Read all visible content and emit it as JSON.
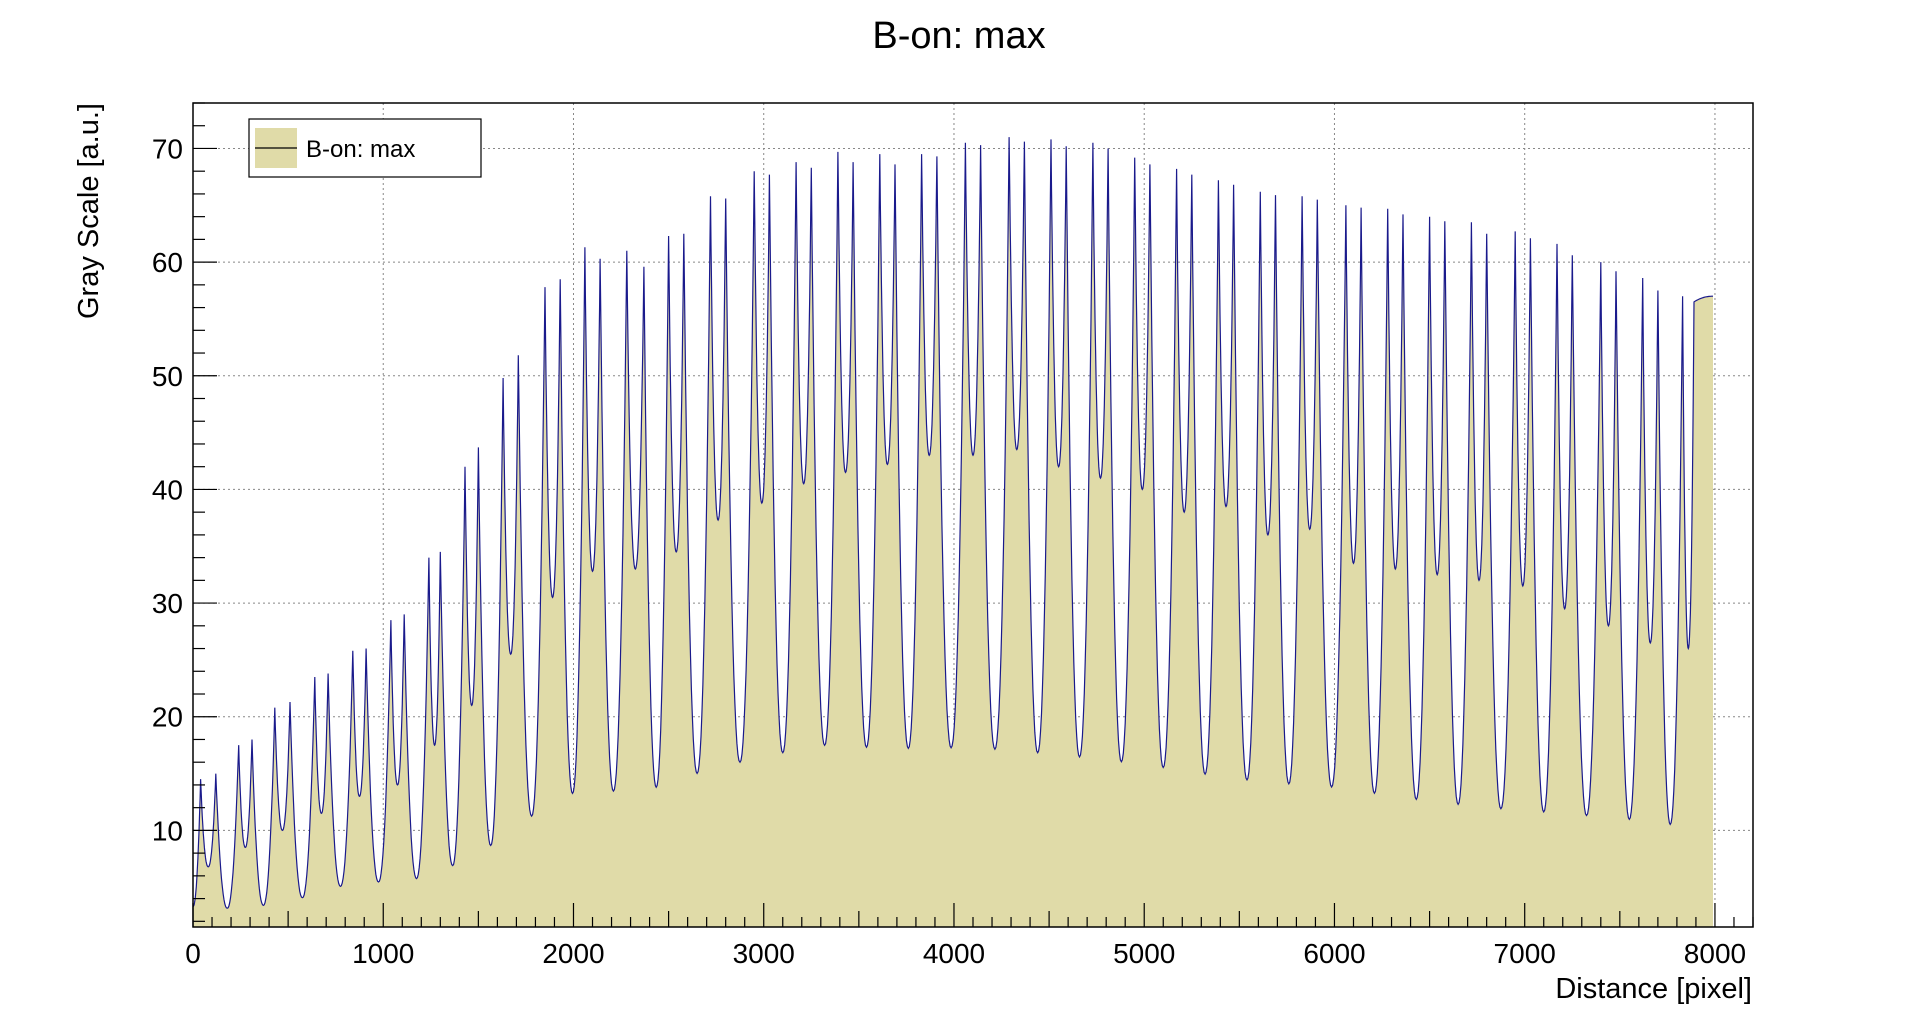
{
  "chart_data": {
    "type": "area",
    "title": "B-on: max",
    "xlabel": "Distance [pixel]",
    "ylabel": "Gray Scale [a.u.]",
    "xlim": [
      0,
      8200
    ],
    "ylim": [
      1.5,
      74
    ],
    "xticks": [
      0,
      1000,
      2000,
      3000,
      4000,
      5000,
      6000,
      7000,
      8000
    ],
    "yticks": [
      10,
      20,
      30,
      40,
      50,
      60,
      70
    ],
    "grid": true,
    "legend": {
      "position": "top-left",
      "entries": [
        {
          "label": "B-on: max"
        }
      ]
    },
    "colors": {
      "fill": "#e0dba8",
      "line": "#1a1a8c",
      "grid": "#888888"
    },
    "series": [
      {
        "name": "B-on: max",
        "baseline": [
          [
            0,
            4.5
          ],
          [
            200,
            3.0
          ],
          [
            500,
            3.7
          ],
          [
            800,
            5.2
          ],
          [
            1200,
            5.8
          ],
          [
            1500,
            7.8
          ],
          [
            1700,
            10.5
          ],
          [
            1900,
            12.4
          ],
          [
            2000,
            13.3
          ],
          [
            2400,
            13.6
          ],
          [
            2700,
            15.3
          ],
          [
            3000,
            16.5
          ],
          [
            3300,
            17.5
          ],
          [
            3700,
            17.2
          ],
          [
            4100,
            17.3
          ],
          [
            4400,
            16.9
          ],
          [
            4700,
            16.4
          ],
          [
            5000,
            15.8
          ],
          [
            5300,
            15.0
          ],
          [
            5600,
            14.3
          ],
          [
            6000,
            13.8
          ],
          [
            6400,
            12.8
          ],
          [
            6800,
            12.0
          ],
          [
            7200,
            11.5
          ],
          [
            7600,
            10.9
          ],
          [
            8000,
            10.0
          ]
        ],
        "peaks": [
          {
            "x": 40,
            "y": 14.5
          },
          {
            "x": 120,
            "y": 15.0
          },
          {
            "x": 240,
            "y": 17.5
          },
          {
            "x": 310,
            "y": 18.0
          },
          {
            "x": 430,
            "y": 20.8
          },
          {
            "x": 510,
            "y": 21.3
          },
          {
            "x": 640,
            "y": 23.5
          },
          {
            "x": 710,
            "y": 23.8
          },
          {
            "x": 840,
            "y": 25.8
          },
          {
            "x": 910,
            "y": 26.0
          },
          {
            "x": 1040,
            "y": 28.5
          },
          {
            "x": 1110,
            "y": 29.0
          },
          {
            "x": 1240,
            "y": 34.0
          },
          {
            "x": 1300,
            "y": 34.5
          },
          {
            "x": 1430,
            "y": 42.0
          },
          {
            "x": 1500,
            "y": 43.7
          },
          {
            "x": 1630,
            "y": 49.8
          },
          {
            "x": 1710,
            "y": 51.8
          },
          {
            "x": 1850,
            "y": 57.8
          },
          {
            "x": 1930,
            "y": 58.5
          },
          {
            "x": 2060,
            "y": 61.3
          },
          {
            "x": 2140,
            "y": 60.3
          },
          {
            "x": 2280,
            "y": 61.0
          },
          {
            "x": 2370,
            "y": 59.6
          },
          {
            "x": 2500,
            "y": 62.3
          },
          {
            "x": 2580,
            "y": 62.5
          },
          {
            "x": 2720,
            "y": 65.8
          },
          {
            "x": 2800,
            "y": 65.6
          },
          {
            "x": 2950,
            "y": 68.0
          },
          {
            "x": 3030,
            "y": 67.7
          },
          {
            "x": 3170,
            "y": 68.8
          },
          {
            "x": 3250,
            "y": 68.3
          },
          {
            "x": 3390,
            "y": 69.7
          },
          {
            "x": 3470,
            "y": 68.8
          },
          {
            "x": 3610,
            "y": 69.5
          },
          {
            "x": 3690,
            "y": 68.6
          },
          {
            "x": 3830,
            "y": 69.5
          },
          {
            "x": 3910,
            "y": 69.3
          },
          {
            "x": 4060,
            "y": 70.5
          },
          {
            "x": 4140,
            "y": 70.3
          },
          {
            "x": 4290,
            "y": 71.0
          },
          {
            "x": 4370,
            "y": 70.6
          },
          {
            "x": 4510,
            "y": 70.8
          },
          {
            "x": 4590,
            "y": 70.2
          },
          {
            "x": 4730,
            "y": 70.5
          },
          {
            "x": 4810,
            "y": 70.0
          },
          {
            "x": 4950,
            "y": 69.2
          },
          {
            "x": 5030,
            "y": 68.6
          },
          {
            "x": 5170,
            "y": 68.2
          },
          {
            "x": 5250,
            "y": 67.7
          },
          {
            "x": 5390,
            "y": 67.2
          },
          {
            "x": 5470,
            "y": 66.8
          },
          {
            "x": 5610,
            "y": 66.2
          },
          {
            "x": 5690,
            "y": 65.9
          },
          {
            "x": 5830,
            "y": 65.8
          },
          {
            "x": 5910,
            "y": 65.5
          },
          {
            "x": 6060,
            "y": 65.0
          },
          {
            "x": 6140,
            "y": 64.8
          },
          {
            "x": 6280,
            "y": 64.7
          },
          {
            "x": 6360,
            "y": 64.2
          },
          {
            "x": 6500,
            "y": 64.0
          },
          {
            "x": 6580,
            "y": 63.6
          },
          {
            "x": 6720,
            "y": 63.5
          },
          {
            "x": 6800,
            "y": 62.5
          },
          {
            "x": 6950,
            "y": 62.7
          },
          {
            "x": 7030,
            "y": 62.1
          },
          {
            "x": 7170,
            "y": 61.6
          },
          {
            "x": 7250,
            "y": 60.6
          },
          {
            "x": 7400,
            "y": 60.0
          },
          {
            "x": 7480,
            "y": 59.2
          },
          {
            "x": 7620,
            "y": 58.6
          },
          {
            "x": 7700,
            "y": 57.5
          },
          {
            "x": 7830,
            "y": 57.0
          },
          {
            "x": 7890,
            "y": 56.5
          }
        ],
        "dips": [
          {
            "x": 80,
            "y": 6.8
          },
          {
            "x": 275,
            "y": 8.5
          },
          {
            "x": 470,
            "y": 10.0
          },
          {
            "x": 675,
            "y": 11.5
          },
          {
            "x": 875,
            "y": 13.0
          },
          {
            "x": 1075,
            "y": 14.0
          },
          {
            "x": 1270,
            "y": 17.5
          },
          {
            "x": 1465,
            "y": 21.0
          },
          {
            "x": 1670,
            "y": 25.5
          },
          {
            "x": 1890,
            "y": 30.5
          },
          {
            "x": 2100,
            "y": 32.8
          },
          {
            "x": 2325,
            "y": 33.0
          },
          {
            "x": 2540,
            "y": 34.5
          },
          {
            "x": 2760,
            "y": 37.3
          },
          {
            "x": 2990,
            "y": 38.8
          },
          {
            "x": 3210,
            "y": 40.5
          },
          {
            "x": 3430,
            "y": 41.5
          },
          {
            "x": 3650,
            "y": 42.2
          },
          {
            "x": 3870,
            "y": 43.0
          },
          {
            "x": 4100,
            "y": 43.0
          },
          {
            "x": 4330,
            "y": 43.5
          },
          {
            "x": 4550,
            "y": 42.0
          },
          {
            "x": 4770,
            "y": 41.0
          },
          {
            "x": 4990,
            "y": 40.0
          },
          {
            "x": 5210,
            "y": 38.0
          },
          {
            "x": 5430,
            "y": 38.5
          },
          {
            "x": 5650,
            "y": 36.0
          },
          {
            "x": 5870,
            "y": 36.5
          },
          {
            "x": 6100,
            "y": 33.5
          },
          {
            "x": 6320,
            "y": 33.0
          },
          {
            "x": 6540,
            "y": 32.5
          },
          {
            "x": 6760,
            "y": 32.0
          },
          {
            "x": 6990,
            "y": 31.5
          },
          {
            "x": 7210,
            "y": 29.5
          },
          {
            "x": 7440,
            "y": 28.0
          },
          {
            "x": 7660,
            "y": 26.5
          },
          {
            "x": 7860,
            "y": 26.0
          }
        ],
        "end": {
          "x": 7990,
          "y": 57.0
        }
      }
    ]
  }
}
